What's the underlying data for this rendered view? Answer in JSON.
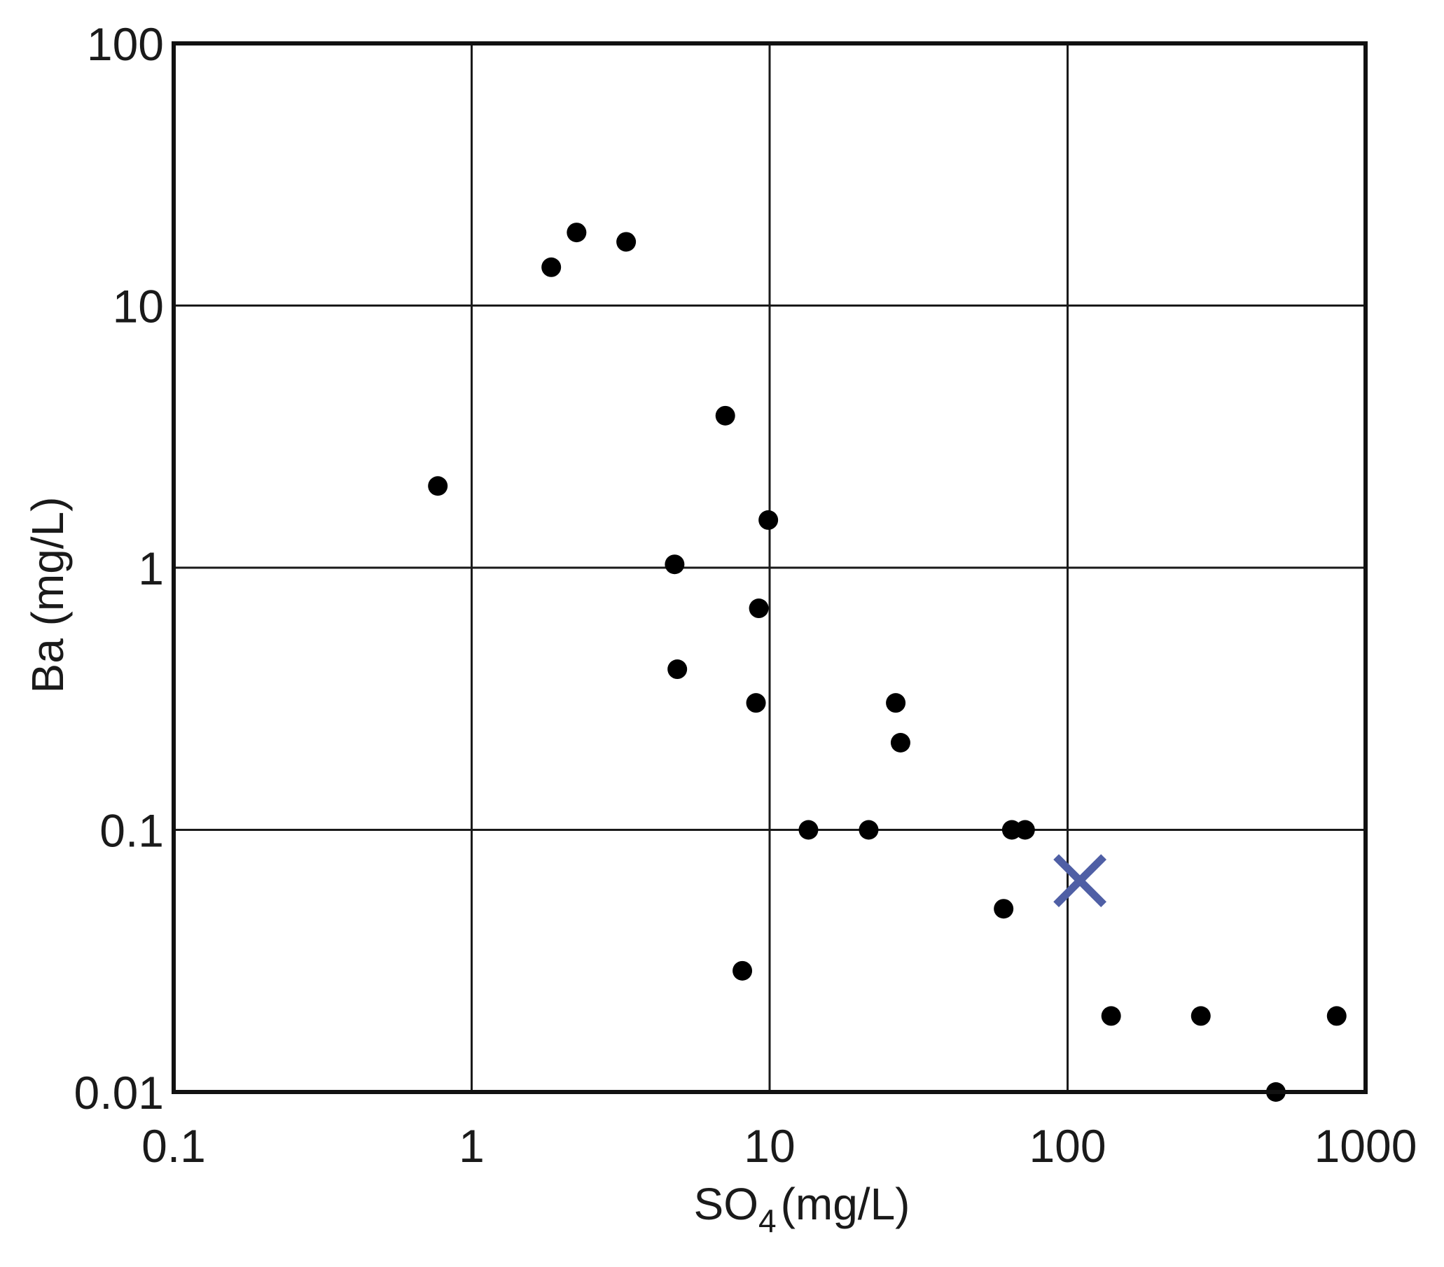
{
  "chart_data": {
    "type": "scatter",
    "title": "",
    "xlabel": {
      "main": "SO",
      "subscript": "4",
      "unit": "(mg/L)"
    },
    "ylabel": "Ba (mg/L)",
    "xscale": "log",
    "yscale": "log",
    "xlim": [
      0.1,
      1000
    ],
    "ylim": [
      0.01,
      100
    ],
    "xticks": [
      {
        "value": 0.1,
        "label": "0.1"
      },
      {
        "value": 1,
        "label": "1"
      },
      {
        "value": 10,
        "label": "10"
      },
      {
        "value": 100,
        "label": "100"
      },
      {
        "value": 1000,
        "label": "1000"
      }
    ],
    "yticks": [
      {
        "value": 0.01,
        "label": "0.01"
      },
      {
        "value": 0.1,
        "label": "0.1"
      },
      {
        "value": 1,
        "label": "1"
      },
      {
        "value": 10,
        "label": "10"
      },
      {
        "value": 100,
        "label": "100"
      }
    ],
    "grid": true,
    "legend": "none",
    "series": [
      {
        "marker": "circle",
        "color": "#000000",
        "points": [
          {
            "x": 0.77,
            "y": 2.05
          },
          {
            "x": 1.85,
            "y": 14.0
          },
          {
            "x": 2.25,
            "y": 19.0
          },
          {
            "x": 3.3,
            "y": 17.5
          },
          {
            "x": 4.8,
            "y": 1.03
          },
          {
            "x": 4.9,
            "y": 0.41
          },
          {
            "x": 7.1,
            "y": 3.8
          },
          {
            "x": 8.1,
            "y": 0.029
          },
          {
            "x": 9.0,
            "y": 0.305
          },
          {
            "x": 9.2,
            "y": 0.7
          },
          {
            "x": 9.9,
            "y": 1.52
          },
          {
            "x": 13.5,
            "y": 0.1
          },
          {
            "x": 21.5,
            "y": 0.1
          },
          {
            "x": 26.5,
            "y": 0.305
          },
          {
            "x": 27.5,
            "y": 0.215
          },
          {
            "x": 61.0,
            "y": 0.05
          },
          {
            "x": 65.0,
            "y": 0.1
          },
          {
            "x": 72.0,
            "y": 0.1
          },
          {
            "x": 140.0,
            "y": 0.0195
          },
          {
            "x": 280.0,
            "y": 0.0195
          },
          {
            "x": 500.0,
            "y": 0.01
          },
          {
            "x": 800.0,
            "y": 0.0195
          }
        ]
      },
      {
        "marker": "x",
        "color": "#4f5fa5",
        "points": [
          {
            "x": 110.0,
            "y": 0.064
          }
        ]
      }
    ]
  }
}
